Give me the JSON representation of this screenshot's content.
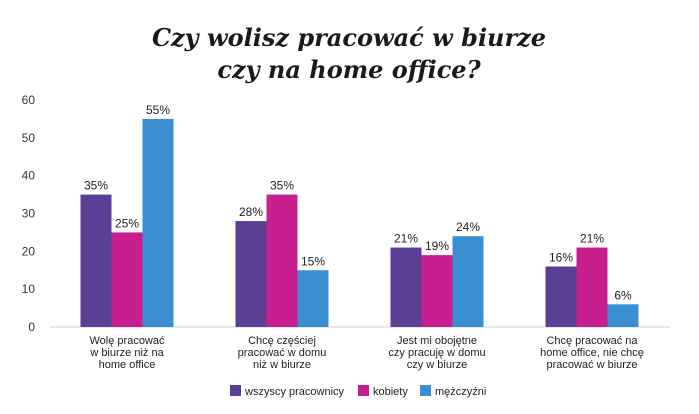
{
  "chart_data": {
    "type": "bar",
    "title_lines": [
      "Czy wolisz pracować w biurze",
      "czy na home office?"
    ],
    "ylim": [
      0,
      60
    ],
    "yticks": [
      "0",
      "10",
      "20",
      "30",
      "40",
      "50",
      "60"
    ],
    "ytick_values": [
      0,
      10,
      20,
      30,
      40,
      50,
      60
    ],
    "grid": false,
    "legend_position": "bottom-center",
    "categories": [
      [
        "Wolę pracować",
        "w biurze niż na",
        "home office"
      ],
      [
        "Chcę częściej",
        "pracować w domu",
        "niż w biurze"
      ],
      [
        "Jest mi obojętne",
        "czy pracuję w domu",
        "czy w biurze"
      ],
      [
        "Chcę pracować na",
        "home office, nie chcę",
        "pracować w biurze"
      ]
    ],
    "series": [
      {
        "name": "wszyscy pracownicy",
        "color": "#5b3f95",
        "values": [
          35,
          28,
          21,
          16
        ],
        "labels": [
          "35%",
          "28%",
          "21%",
          "16%"
        ]
      },
      {
        "name": "kobiety",
        "color": "#c71f8f",
        "values": [
          25,
          35,
          19,
          21
        ],
        "labels": [
          "25%",
          "35%",
          "19%",
          "21%"
        ]
      },
      {
        "name": "mężczyźni",
        "color": "#3b8fd0",
        "values": [
          55,
          15,
          24,
          6
        ],
        "labels": [
          "55%",
          "15%",
          "24%",
          "6%"
        ]
      }
    ]
  }
}
